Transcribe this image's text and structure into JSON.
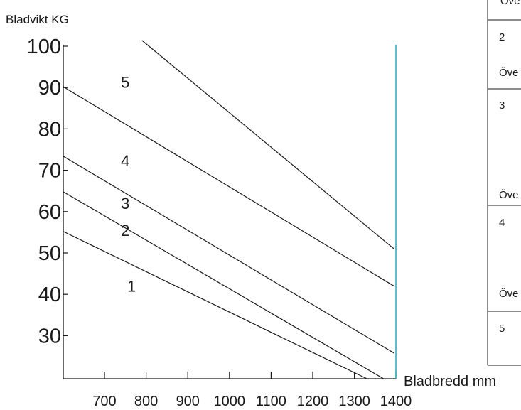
{
  "chart_data": {
    "type": "line",
    "ylabel": "Bladvikt KG",
    "xlabel": "Bladbredd mm",
    "xlim": [
      600,
      1400
    ],
    "ylim": [
      20,
      100
    ],
    "yticks": [
      {
        "value": 30,
        "label": "30"
      },
      {
        "value": 40,
        "label": "40"
      },
      {
        "value": 50,
        "label": "50"
      },
      {
        "value": 60,
        "label": "60"
      },
      {
        "value": 70,
        "label": "70"
      },
      {
        "value": 80,
        "label": "80"
      },
      {
        "value": 90,
        "label": "90"
      },
      {
        "value": 100,
        "label": "100"
      }
    ],
    "xticks": [
      {
        "value": 700,
        "label": "700"
      },
      {
        "value": 800,
        "label": "800"
      },
      {
        "value": 900,
        "label": "900"
      },
      {
        "value": 1000,
        "label": "1000"
      },
      {
        "value": 1100,
        "label": "1100"
      },
      {
        "value": 1200,
        "label": "1200"
      },
      {
        "value": 1300,
        "label": "1300"
      },
      {
        "value": 1400,
        "label": "1400"
      }
    ],
    "series": [
      {
        "points": [
          [
            600,
            55.2
          ],
          [
            1330,
            20
          ]
        ]
      },
      {
        "points": [
          [
            600,
            64.8
          ],
          [
            1370,
            20
          ]
        ]
      },
      {
        "points": [
          [
            600,
            73.4
          ],
          [
            1395,
            25.8
          ]
        ]
      },
      {
        "points": [
          [
            600,
            90.2
          ],
          [
            1395,
            42
          ]
        ]
      },
      {
        "points": [
          [
            790,
            101.4
          ],
          [
            1395,
            51
          ]
        ]
      }
    ],
    "zone_labels": [
      {
        "text": "1",
        "x": 765,
        "y": 42
      },
      {
        "text": "2",
        "x": 750,
        "y": 55.5
      },
      {
        "text": "3",
        "x": 750,
        "y": 62
      },
      {
        "text": "4",
        "x": 750,
        "y": 72.3
      },
      {
        "text": "5",
        "x": 750,
        "y": 91.3
      }
    ],
    "reference_line": {
      "x": 1400,
      "color": "#2aa9b8"
    },
    "grid": false
  },
  "side_table": {
    "rows": [
      {
        "number": "",
        "text": "Öve"
      },
      {
        "number": "2",
        "text": "Öve"
      },
      {
        "number": "3",
        "text": "Öve"
      },
      {
        "number": "4",
        "text": "Öve"
      },
      {
        "number": "5",
        "text": ""
      }
    ]
  },
  "colors": {
    "line": "#1a1a1a",
    "reference": "#2aa9b8",
    "background": "#ffffff"
  }
}
